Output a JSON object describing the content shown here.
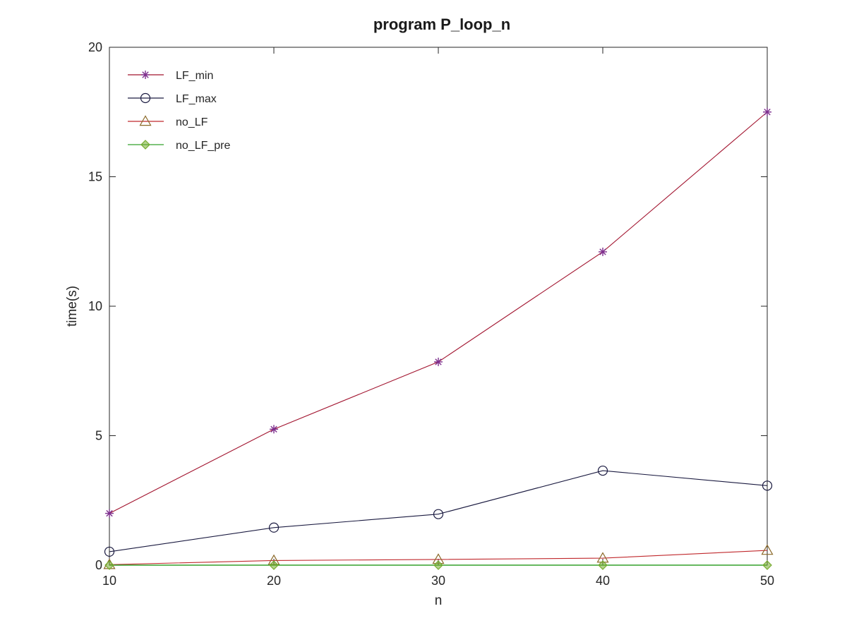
{
  "chart_data": {
    "type": "line",
    "title": "program P_loop_n",
    "xlabel": "n",
    "ylabel": "time(s)",
    "x": [
      10,
      20,
      30,
      40,
      50
    ],
    "xlim": [
      10,
      50
    ],
    "ylim": [
      0,
      20
    ],
    "xticks": [
      10,
      20,
      30,
      40,
      50
    ],
    "yticks": [
      0,
      5,
      10,
      15,
      20
    ],
    "grid": false,
    "legend_position": "top-left",
    "series": [
      {
        "name": "LF_min",
        "values": [
          2.0,
          5.25,
          7.85,
          12.1,
          17.5
        ],
        "color": "#a2142f",
        "marker": "asterisk",
        "marker_color": "#7e2f8e"
      },
      {
        "name": "LF_max",
        "values": [
          0.52,
          1.45,
          1.97,
          3.65,
          3.07
        ],
        "color": "#1a1a40",
        "marker": "circle",
        "marker_color": "#1a1a40"
      },
      {
        "name": "no_LF",
        "values": [
          0.02,
          0.18,
          0.22,
          0.27,
          0.57
        ],
        "color": "#c0282c",
        "marker": "triangle",
        "marker_color": "#8c6a2a"
      },
      {
        "name": "no_LF_pre",
        "values": [
          0.0,
          0.0,
          0.0,
          0.0,
          0.0
        ],
        "color": "#33a02c",
        "marker": "diamond",
        "marker_color": "#77ac30"
      }
    ]
  }
}
